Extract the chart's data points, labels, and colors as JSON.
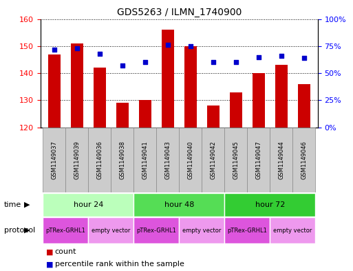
{
  "title": "GDS5263 / ILMN_1740900",
  "samples": [
    "GSM1149037",
    "GSM1149039",
    "GSM1149036",
    "GSM1149038",
    "GSM1149041",
    "GSM1149043",
    "GSM1149040",
    "GSM1149042",
    "GSM1149045",
    "GSM1149047",
    "GSM1149044",
    "GSM1149046"
  ],
  "counts": [
    147,
    151,
    142,
    129,
    130,
    156,
    150,
    128,
    133,
    140,
    143,
    136
  ],
  "percentiles": [
    72,
    73,
    68,
    57,
    60,
    76,
    75,
    60,
    60,
    65,
    66,
    64
  ],
  "ylim_left": [
    120,
    160
  ],
  "ylim_right": [
    0,
    100
  ],
  "yticks_left": [
    120,
    130,
    140,
    150,
    160
  ],
  "yticks_right": [
    0,
    25,
    50,
    75,
    100
  ],
  "bar_color": "#cc0000",
  "dot_color": "#0000cc",
  "bar_bottom": 120,
  "time_groups": [
    {
      "label": "hour 24",
      "start": 0,
      "end": 4,
      "color": "#bbffbb"
    },
    {
      "label": "hour 48",
      "start": 4,
      "end": 8,
      "color": "#55dd55"
    },
    {
      "label": "hour 72",
      "start": 8,
      "end": 12,
      "color": "#33cc33"
    }
  ],
  "protocol_groups": [
    {
      "label": "pTRex-GRHL1",
      "start": 0,
      "end": 2,
      "color": "#dd66dd"
    },
    {
      "label": "empty vector",
      "start": 2,
      "end": 4,
      "color": "#ee88ee"
    },
    {
      "label": "pTRex-GRHL1",
      "start": 4,
      "end": 6,
      "color": "#dd66dd"
    },
    {
      "label": "empty vector",
      "start": 6,
      "end": 8,
      "color": "#ee88ee"
    },
    {
      "label": "pTRex-GRHL1",
      "start": 8,
      "end": 10,
      "color": "#dd66dd"
    },
    {
      "label": "empty vector",
      "start": 10,
      "end": 12,
      "color": "#ee88ee"
    }
  ],
  "legend_count_label": "count",
  "legend_percentile_label": "percentile rank within the sample",
  "time_label": "time",
  "protocol_label": "protocol",
  "sample_box_color": "#cccccc",
  "sample_box_edge": "#888888"
}
